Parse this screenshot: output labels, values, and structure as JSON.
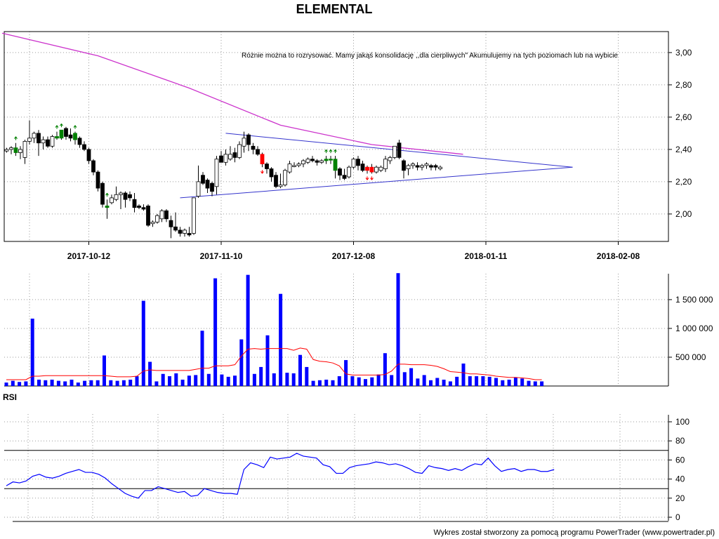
{
  "chart_data": [
    {
      "type": "candlestick",
      "title": "ELEMENTAL",
      "annotation": "Różnie można to rozrysować. Mamy jakąś konsolidację ,,dla cierpliwych\" Akumulujemy na tych poziomach lub na wybicie",
      "x_tick_labels": [
        "2017-10-12",
        "2017-11-10",
        "2017-12-08",
        "2018-01-11",
        "2018-02-08"
      ],
      "y_tick_labels": [
        "2,00",
        "2,20",
        "2,40",
        "2,60",
        "2,80",
        "3,00"
      ],
      "ylim": [
        1.83,
        3.13
      ],
      "grid": true,
      "colors": {
        "up": "#ffffff",
        "down": "#000000",
        "moving_average": "#cc33cc",
        "trendlines": "#3333cc",
        "buy_signal": "#008000",
        "sell_signal": "#ff0000"
      },
      "candles": [
        {
          "o": 2.39,
          "h": 2.41,
          "l": 2.38,
          "c": 2.4
        },
        {
          "o": 2.4,
          "h": 2.42,
          "l": 2.37,
          "c": 2.41
        },
        {
          "o": 2.41,
          "h": 2.44,
          "l": 2.36,
          "c": 2.38,
          "signal": "buy"
        },
        {
          "o": 2.38,
          "h": 2.42,
          "l": 2.34,
          "c": 2.4
        },
        {
          "o": 2.35,
          "h": 2.46,
          "l": 2.31,
          "c": 2.45
        },
        {
          "o": 2.45,
          "h": 2.58,
          "l": 2.43,
          "c": 2.47
        },
        {
          "o": 2.47,
          "h": 2.51,
          "l": 2.44,
          "c": 2.5
        },
        {
          "o": 2.5,
          "h": 2.52,
          "l": 2.36,
          "c": 2.44
        },
        {
          "o": 2.44,
          "h": 2.48,
          "l": 2.4,
          "c": 2.46
        },
        {
          "o": 2.46,
          "h": 2.48,
          "l": 2.41,
          "c": 2.42
        },
        {
          "o": 2.42,
          "h": 2.49,
          "l": 2.41,
          "c": 2.48
        },
        {
          "o": 2.48,
          "h": 2.51,
          "l": 2.46,
          "c": 2.47,
          "signal": "buy"
        },
        {
          "o": 2.47,
          "h": 2.52,
          "l": 2.46,
          "c": 2.52,
          "signal": "buy"
        },
        {
          "o": 2.53,
          "h": 2.54,
          "l": 2.46,
          "c": 2.48
        },
        {
          "o": 2.49,
          "h": 2.53,
          "l": 2.45,
          "c": 2.47
        },
        {
          "o": 2.46,
          "h": 2.51,
          "l": 2.43,
          "c": 2.5,
          "signal": "buy"
        },
        {
          "o": 2.47,
          "h": 2.48,
          "l": 2.41,
          "c": 2.43
        },
        {
          "o": 2.43,
          "h": 2.45,
          "l": 2.39,
          "c": 2.4
        },
        {
          "o": 2.4,
          "h": 2.41,
          "l": 2.31,
          "c": 2.33
        },
        {
          "o": 2.33,
          "h": 2.34,
          "l": 2.24,
          "c": 2.26
        },
        {
          "o": 2.26,
          "h": 2.27,
          "l": 2.14,
          "c": 2.16
        },
        {
          "o": 2.19,
          "h": 2.2,
          "l": 2.04,
          "c": 2.06
        },
        {
          "o": 2.04,
          "h": 2.09,
          "l": 1.97,
          "c": 2.05,
          "signal": "buy"
        },
        {
          "o": 2.07,
          "h": 2.12,
          "l": 2.06,
          "c": 2.1
        },
        {
          "o": 2.09,
          "h": 2.17,
          "l": 2.08,
          "c": 2.12
        },
        {
          "o": 2.12,
          "h": 2.14,
          "l": 2.03,
          "c": 2.13
        },
        {
          "o": 2.13,
          "h": 2.14,
          "l": 2.04,
          "c": 2.09
        },
        {
          "o": 2.12,
          "h": 2.14,
          "l": 2.08,
          "c": 2.1
        },
        {
          "o": 2.09,
          "h": 2.13,
          "l": 2.01,
          "c": 2.04
        },
        {
          "o": 2.05,
          "h": 2.06,
          "l": 2.03,
          "c": 2.04
        },
        {
          "o": 2.04,
          "h": 2.06,
          "l": 2.02,
          "c": 2.03
        },
        {
          "o": 2.05,
          "h": 2.06,
          "l": 1.92,
          "c": 1.93
        },
        {
          "o": 1.94,
          "h": 1.96,
          "l": 1.92,
          "c": 1.95
        },
        {
          "o": 1.95,
          "h": 2.0,
          "l": 1.94,
          "c": 1.99
        },
        {
          "o": 1.97,
          "h": 2.03,
          "l": 1.95,
          "c": 2.02
        },
        {
          "o": 2.02,
          "h": 2.03,
          "l": 1.95,
          "c": 1.97
        },
        {
          "o": 1.96,
          "h": 1.99,
          "l": 1.85,
          "c": 1.92
        },
        {
          "o": 1.92,
          "h": 2.01,
          "l": 1.89,
          "c": 1.9
        },
        {
          "o": 1.9,
          "h": 1.92,
          "l": 1.86,
          "c": 1.88
        },
        {
          "o": 1.88,
          "h": 1.91,
          "l": 1.86,
          "c": 1.9
        },
        {
          "o": 1.88,
          "h": 1.92,
          "l": 1.86,
          "c": 1.87
        },
        {
          "o": 1.88,
          "h": 2.1,
          "l": 1.87,
          "c": 2.1
        },
        {
          "o": 2.11,
          "h": 2.3,
          "l": 2.1,
          "c": 2.2
        },
        {
          "o": 2.24,
          "h": 2.26,
          "l": 2.18,
          "c": 2.19
        },
        {
          "o": 2.21,
          "h": 2.22,
          "l": 2.13,
          "c": 2.16
        },
        {
          "o": 2.19,
          "h": 2.2,
          "l": 2.11,
          "c": 2.14
        },
        {
          "o": 2.17,
          "h": 2.36,
          "l": 2.12,
          "c": 2.34
        },
        {
          "o": 2.36,
          "h": 2.39,
          "l": 2.32,
          "c": 2.32
        },
        {
          "o": 2.32,
          "h": 2.4,
          "l": 2.3,
          "c": 2.37
        },
        {
          "o": 2.34,
          "h": 2.42,
          "l": 2.33,
          "c": 2.37
        },
        {
          "o": 2.38,
          "h": 2.41,
          "l": 2.32,
          "c": 2.35
        },
        {
          "o": 2.35,
          "h": 2.45,
          "l": 2.34,
          "c": 2.43
        },
        {
          "o": 2.42,
          "h": 2.51,
          "l": 2.38,
          "c": 2.47
        },
        {
          "o": 2.49,
          "h": 2.5,
          "l": 2.39,
          "c": 2.43
        },
        {
          "o": 2.42,
          "h": 2.44,
          "l": 2.37,
          "c": 2.4
        },
        {
          "o": 2.4,
          "h": 2.42,
          "l": 2.36,
          "c": 2.37
        },
        {
          "o": 2.37,
          "h": 2.38,
          "l": 2.29,
          "c": 2.31,
          "signal": "sell"
        },
        {
          "o": 2.31,
          "h": 2.32,
          "l": 2.25,
          "c": 2.28
        },
        {
          "o": 2.28,
          "h": 2.29,
          "l": 2.2,
          "c": 2.23
        },
        {
          "o": 2.24,
          "h": 2.26,
          "l": 2.16,
          "c": 2.17
        },
        {
          "o": 2.17,
          "h": 2.25,
          "l": 2.16,
          "c": 2.18
        },
        {
          "o": 2.18,
          "h": 2.28,
          "l": 2.17,
          "c": 2.27
        },
        {
          "o": 2.26,
          "h": 2.33,
          "l": 2.25,
          "c": 2.31
        },
        {
          "o": 2.3,
          "h": 2.32,
          "l": 2.29,
          "c": 2.3
        },
        {
          "o": 2.3,
          "h": 2.32,
          "l": 2.29,
          "c": 2.31
        },
        {
          "o": 2.31,
          "h": 2.34,
          "l": 2.29,
          "c": 2.33
        },
        {
          "o": 2.32,
          "h": 2.35,
          "l": 2.31,
          "c": 2.34
        },
        {
          "o": 2.34,
          "h": 2.36,
          "l": 2.32,
          "c": 2.33
        },
        {
          "o": 2.33,
          "h": 2.34,
          "l": 2.3,
          "c": 2.32
        },
        {
          "o": 2.32,
          "h": 2.34,
          "l": 2.31,
          "c": 2.33
        },
        {
          "o": 2.33,
          "h": 2.36,
          "l": 2.31,
          "c": 2.34,
          "signal": "buy"
        },
        {
          "o": 2.34,
          "h": 2.36,
          "l": 2.31,
          "c": 2.34,
          "signal": "buy"
        },
        {
          "o": 2.34,
          "h": 2.36,
          "l": 2.22,
          "c": 2.27,
          "signal": "buy"
        },
        {
          "o": 2.28,
          "h": 2.29,
          "l": 2.21,
          "c": 2.24
        },
        {
          "o": 2.24,
          "h": 2.28,
          "l": 2.21,
          "c": 2.22
        },
        {
          "o": 2.23,
          "h": 2.3,
          "l": 2.22,
          "c": 2.29
        },
        {
          "o": 2.29,
          "h": 2.35,
          "l": 2.28,
          "c": 2.34
        },
        {
          "o": 2.34,
          "h": 2.36,
          "l": 2.27,
          "c": 2.3
        },
        {
          "o": 2.31,
          "h": 2.33,
          "l": 2.26,
          "c": 2.27
        },
        {
          "o": 2.27,
          "h": 2.3,
          "l": 2.25,
          "c": 2.29,
          "signal": "sell"
        },
        {
          "o": 2.29,
          "h": 2.31,
          "l": 2.25,
          "c": 2.26,
          "signal": "sell"
        },
        {
          "o": 2.26,
          "h": 2.3,
          "l": 2.25,
          "c": 2.29
        },
        {
          "o": 2.27,
          "h": 2.3,
          "l": 2.26,
          "c": 2.29
        },
        {
          "o": 2.28,
          "h": 2.36,
          "l": 2.26,
          "c": 2.34
        },
        {
          "o": 2.33,
          "h": 2.36,
          "l": 2.31,
          "c": 2.35
        },
        {
          "o": 2.35,
          "h": 2.42,
          "l": 2.34,
          "c": 2.42
        },
        {
          "o": 2.44,
          "h": 2.46,
          "l": 2.34,
          "c": 2.35
        },
        {
          "o": 2.33,
          "h": 2.34,
          "l": 2.22,
          "c": 2.27
        },
        {
          "o": 2.28,
          "h": 2.31,
          "l": 2.24,
          "c": 2.3
        },
        {
          "o": 2.3,
          "h": 2.32,
          "l": 2.28,
          "c": 2.31
        },
        {
          "o": 2.3,
          "h": 2.32,
          "l": 2.27,
          "c": 2.29
        },
        {
          "o": 2.29,
          "h": 2.31,
          "l": 2.27,
          "c": 2.3
        },
        {
          "o": 2.3,
          "h": 2.32,
          "l": 2.28,
          "c": 2.31
        },
        {
          "o": 2.3,
          "h": 2.31,
          "l": 2.27,
          "c": 2.29
        },
        {
          "o": 2.3,
          "h": 2.31,
          "l": 2.27,
          "c": 2.29
        },
        {
          "o": 2.28,
          "h": 2.3,
          "l": 2.27,
          "c": 2.29
        }
      ],
      "moving_average": [
        {
          "i": -1,
          "v": 3.12
        },
        {
          "i": 20,
          "v": 2.98
        },
        {
          "i": 40,
          "v": 2.78
        },
        {
          "i": 60,
          "v": 2.55
        },
        {
          "i": 80,
          "v": 2.43
        },
        {
          "i": 100,
          "v": 2.37
        }
      ],
      "trendlines": [
        {
          "from": {
            "i": 48,
            "v": 2.5
          },
          "to": {
            "i": 124,
            "v": 2.29
          }
        },
        {
          "from": {
            "i": 38,
            "v": 2.1
          },
          "to": {
            "i": 124,
            "v": 2.29
          }
        }
      ]
    },
    {
      "type": "bar",
      "y_tick_labels": [
        "500 000",
        "1 000 000",
        "1 500 000"
      ],
      "ylim": [
        0,
        1950000
      ],
      "colors": {
        "bars": "#0000ff",
        "average": "#ff0000"
      },
      "values": [
        60000,
        90000,
        70000,
        80000,
        1170000,
        110000,
        100000,
        110000,
        90000,
        80000,
        110000,
        60000,
        90000,
        100000,
        100000,
        530000,
        100000,
        90000,
        100000,
        110000,
        170000,
        1480000,
        420000,
        80000,
        210000,
        170000,
        220000,
        110000,
        180000,
        190000,
        960000,
        210000,
        1870000,
        200000,
        160000,
        180000,
        810000,
        1930000,
        210000,
        330000,
        880000,
        220000,
        1600000,
        230000,
        220000,
        540000,
        330000,
        90000,
        100000,
        110000,
        100000,
        170000,
        450000,
        170000,
        150000,
        120000,
        150000,
        200000,
        570000,
        190000,
        1960000,
        240000,
        310000,
        130000,
        190000,
        100000,
        140000,
        110000,
        80000,
        160000,
        390000,
        170000,
        170000,
        170000,
        160000,
        140000,
        100000,
        110000,
        150000,
        130000,
        90000,
        80000,
        80000
      ],
      "average": [
        110000,
        110000,
        110000,
        110000,
        170000,
        170000,
        180000,
        180000,
        180000,
        180000,
        180000,
        180000,
        180000,
        180000,
        180000,
        180000,
        170000,
        160000,
        160000,
        160000,
        170000,
        260000,
        280000,
        270000,
        270000,
        270000,
        270000,
        270000,
        270000,
        290000,
        310000,
        310000,
        350000,
        350000,
        350000,
        370000,
        520000,
        640000,
        650000,
        640000,
        650000,
        650000,
        650000,
        650000,
        620000,
        660000,
        640000,
        460000,
        430000,
        420000,
        400000,
        350000,
        210000,
        190000,
        190000,
        190000,
        190000,
        190000,
        200000,
        260000,
        380000,
        380000,
        370000,
        370000,
        370000,
        360000,
        340000,
        300000,
        250000,
        240000,
        230000,
        210000,
        210000,
        200000,
        190000,
        170000,
        160000,
        150000,
        150000,
        140000,
        130000,
        110000,
        110000
      ]
    },
    {
      "type": "line",
      "title": "RSI",
      "y_tick_labels": [
        "0",
        "20",
        "40",
        "60",
        "80",
        "100"
      ],
      "ylim": [
        0,
        100
      ],
      "levels": [
        30,
        70
      ],
      "colors": {
        "line": "#0000ff"
      },
      "values": [
        33,
        37,
        36,
        38,
        43,
        45,
        42,
        41,
        43,
        46,
        48,
        50,
        47,
        47,
        45,
        41,
        35,
        30,
        25,
        22,
        20,
        28,
        28,
        32,
        30,
        28,
        26,
        27,
        22,
        23,
        30,
        28,
        26,
        25,
        25,
        24,
        50,
        57,
        55,
        52,
        63,
        61,
        62,
        63,
        67,
        64,
        63,
        62,
        55,
        53,
        46,
        46,
        52,
        54,
        55,
        56,
        58,
        57,
        55,
        56,
        54,
        51,
        47,
        46,
        54,
        52,
        51,
        49,
        51,
        49,
        53,
        56,
        55,
        62,
        54,
        48,
        50,
        51,
        48,
        50,
        50,
        48,
        48,
        50
      ]
    }
  ],
  "footer": "Wykres został stworzony za pomocą programu PowerTrader (www.powertrader.pl)"
}
